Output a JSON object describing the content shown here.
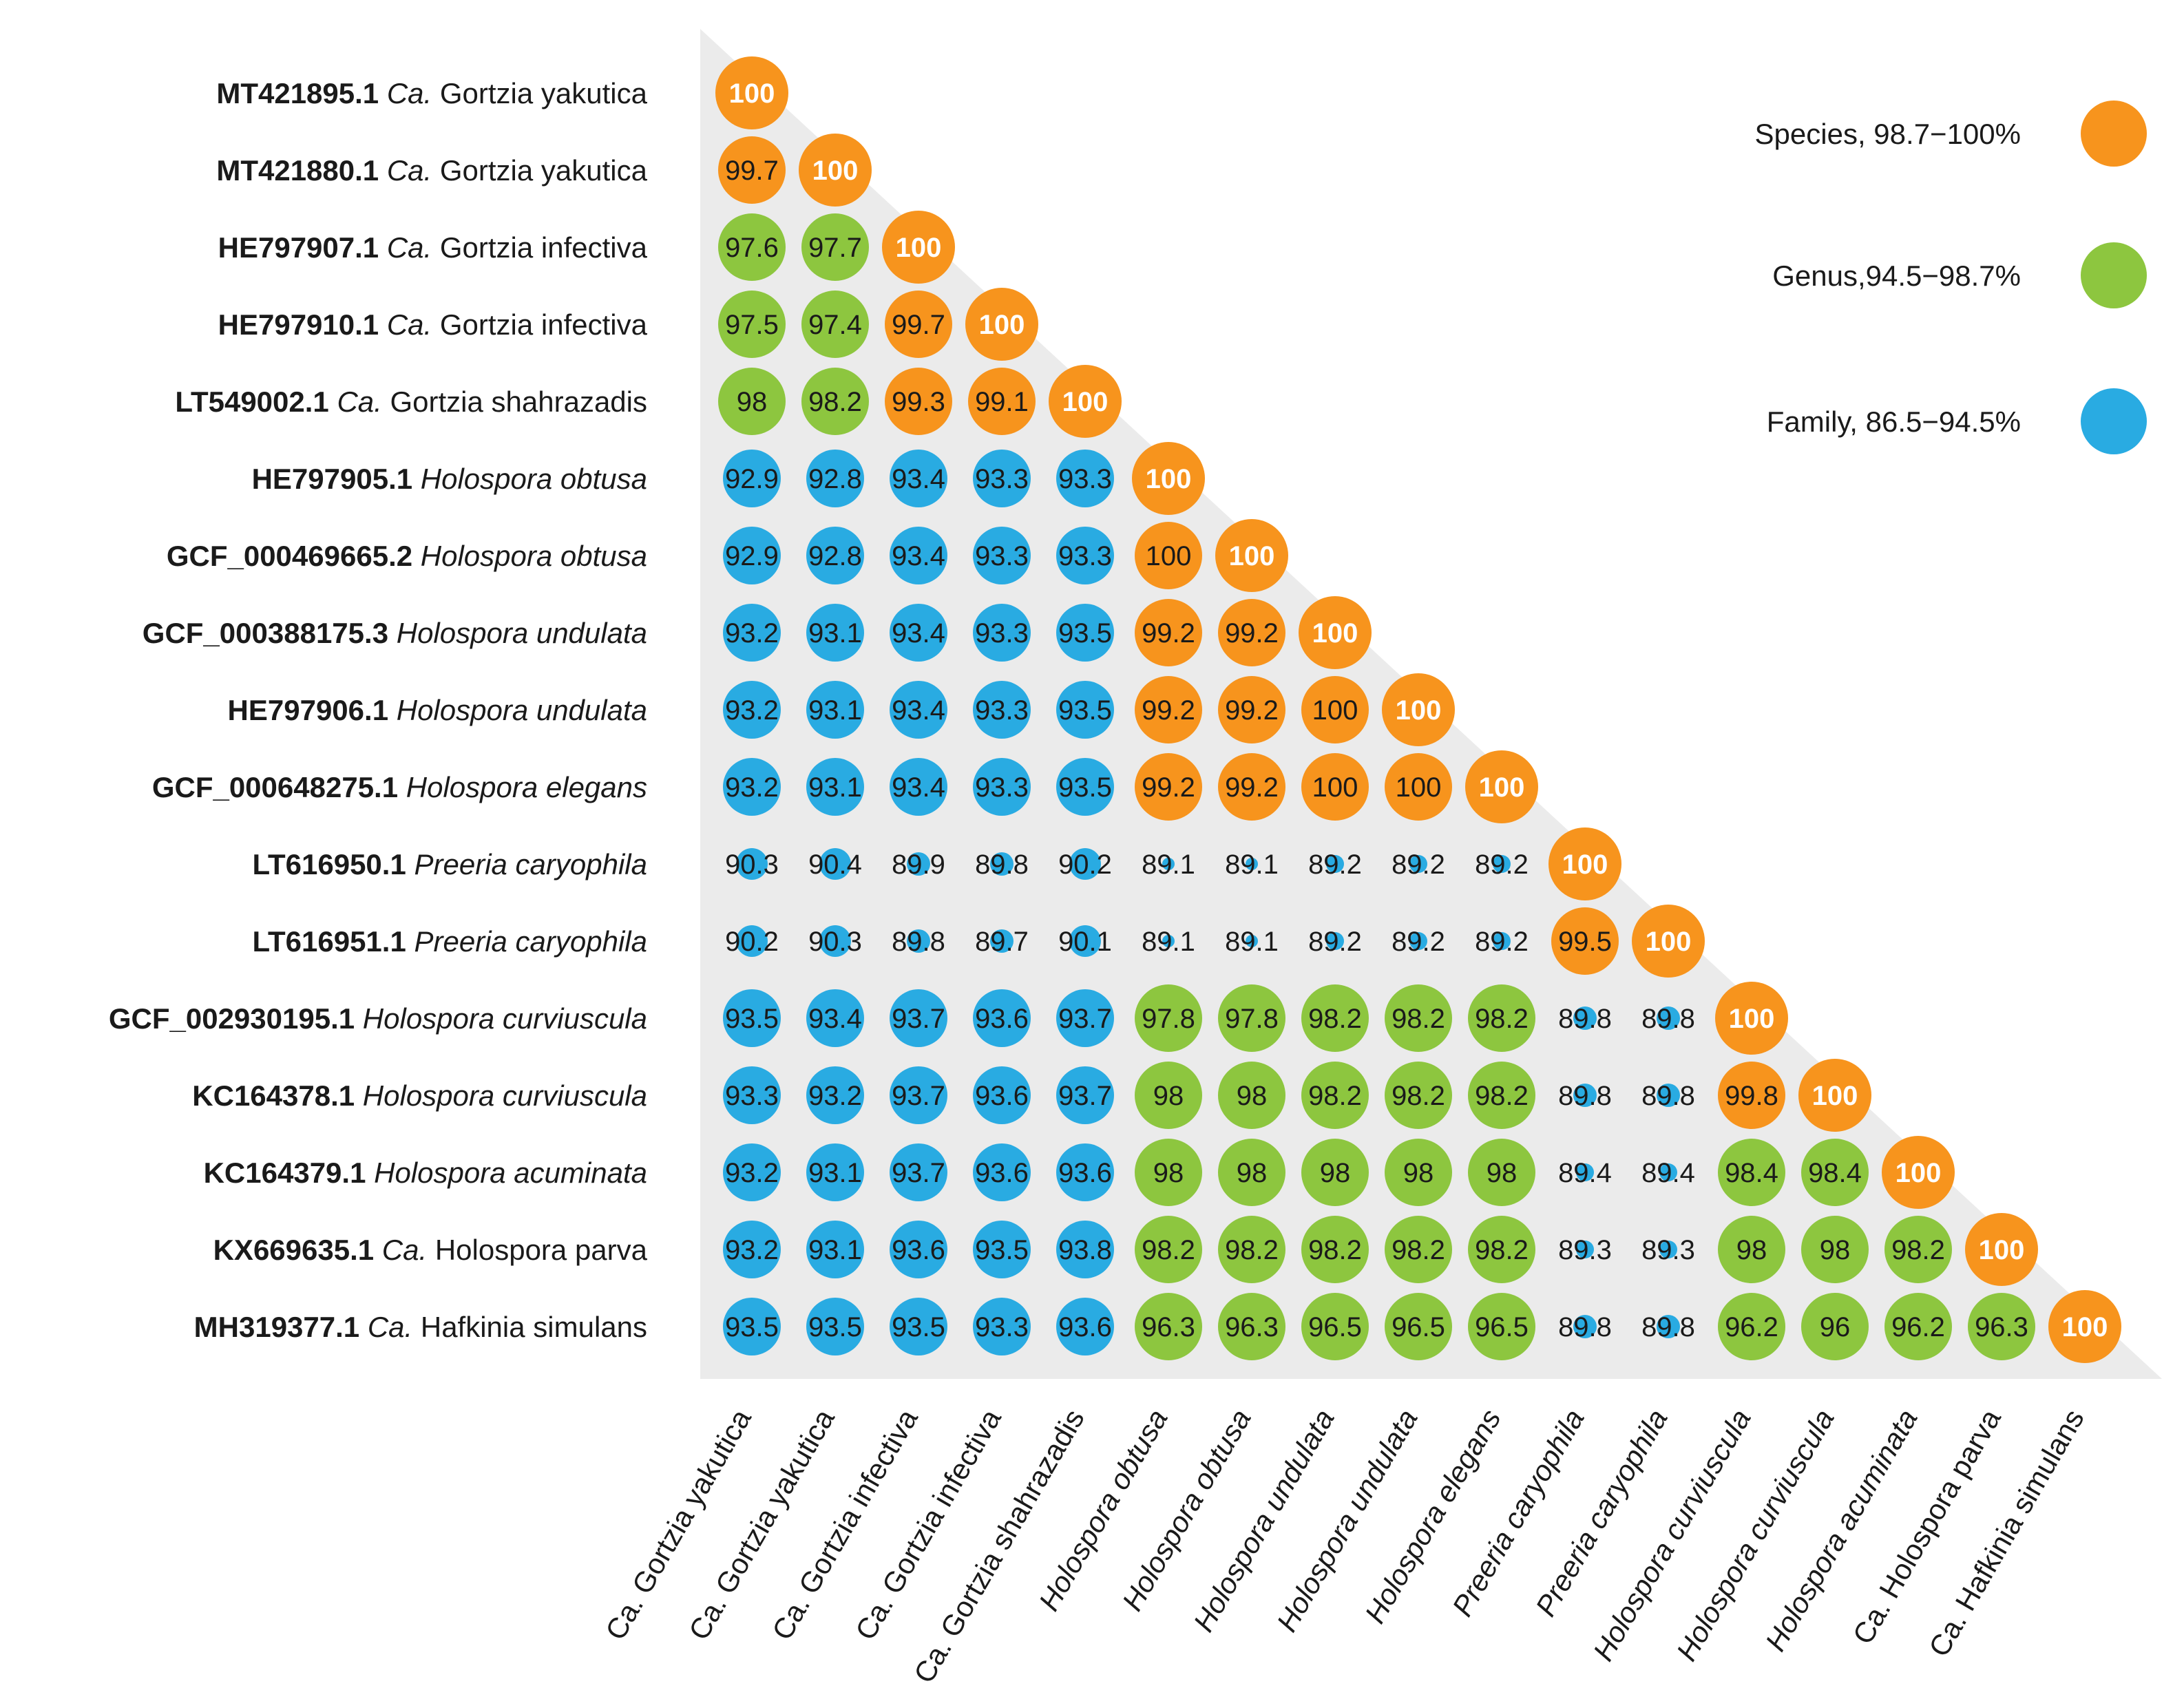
{
  "chart_data": {
    "type": "heatmap",
    "title": "",
    "rows": [
      {
        "accession": "MT421895.1",
        "prefix": "Ca.",
        "name": "Gortzia yakutica",
        "italic": false
      },
      {
        "accession": "MT421880.1",
        "prefix": "Ca.",
        "name": "Gortzia yakutica",
        "italic": false
      },
      {
        "accession": "HE797907.1",
        "prefix": "Ca.",
        "name": "Gortzia infectiva",
        "italic": false
      },
      {
        "accession": "HE797910.1",
        "prefix": "Ca.",
        "name": "Gortzia infectiva",
        "italic": false
      },
      {
        "accession": "LT549002.1",
        "prefix": "Ca.",
        "name": "Gortzia shahrazadis",
        "italic": false
      },
      {
        "accession": "HE797905.1",
        "prefix": "",
        "name": "Holospora obtusa",
        "italic": true
      },
      {
        "accession": "GCF_000469665.2",
        "prefix": "",
        "name": "Holospora obtusa",
        "italic": true
      },
      {
        "accession": "GCF_000388175.3",
        "prefix": "",
        "name": "Holospora undulata",
        "italic": true
      },
      {
        "accession": "HE797906.1",
        "prefix": "",
        "name": "Holospora undulata",
        "italic": true
      },
      {
        "accession": "GCF_000648275.1",
        "prefix": "",
        "name": "Holospora elegans",
        "italic": true
      },
      {
        "accession": "LT616950.1",
        "prefix": "",
        "name": "Preeria caryophila",
        "italic": true
      },
      {
        "accession": "LT616951.1",
        "prefix": "",
        "name": "Preeria caryophila",
        "italic": true
      },
      {
        "accession": "GCF_002930195.1",
        "prefix": "",
        "name": "Holospora curviuscula",
        "italic": true
      },
      {
        "accession": "KC164378.1",
        "prefix": "",
        "name": "Holospora curviuscula",
        "italic": true
      },
      {
        "accession": "KC164379.1",
        "prefix": "",
        "name": "Holospora acuminata",
        "italic": true
      },
      {
        "accession": "KX669635.1",
        "prefix": "Ca.",
        "name": "Holospora parva",
        "italic": false
      },
      {
        "accession": "MH319377.1",
        "prefix": "Ca.",
        "name": "Hafkinia simulans",
        "italic": false
      }
    ],
    "columns": [
      {
        "prefix": "Ca.",
        "name": "Gortzia yakutica",
        "italic": false
      },
      {
        "prefix": "Ca.",
        "name": "Gortzia yakutica",
        "italic": false
      },
      {
        "prefix": "Ca.",
        "name": "Gortzia infectiva",
        "italic": false
      },
      {
        "prefix": "Ca.",
        "name": "Gortzia infectiva",
        "italic": false
      },
      {
        "prefix": "Ca.",
        "name": "Gortzia shahrazadis",
        "italic": false
      },
      {
        "prefix": "",
        "name": "Holospora obtusa",
        "italic": true
      },
      {
        "prefix": "",
        "name": "Holospora obtusa",
        "italic": true
      },
      {
        "prefix": "",
        "name": "Holospora undulata",
        "italic": true
      },
      {
        "prefix": "",
        "name": "Holospora undulata",
        "italic": true
      },
      {
        "prefix": "",
        "name": "Holospora elegans",
        "italic": true
      },
      {
        "prefix": "",
        "name": "Preeria caryophila",
        "italic": true
      },
      {
        "prefix": "",
        "name": "Preeria caryophila",
        "italic": true
      },
      {
        "prefix": "",
        "name": "Holospora curviuscula",
        "italic": true
      },
      {
        "prefix": "",
        "name": "Holospora curviuscula",
        "italic": true
      },
      {
        "prefix": "",
        "name": "Holospora acuminata",
        "italic": true
      },
      {
        "prefix": "Ca.",
        "name": "Holospora parva",
        "italic": false
      },
      {
        "prefix": "Ca.",
        "name": "Hafkinia simulans",
        "italic": false
      }
    ],
    "values": [
      [
        "100"
      ],
      [
        "99.7",
        "100"
      ],
      [
        "97.6",
        "97.7",
        "100"
      ],
      [
        "97.5",
        "97.4",
        "99.7",
        "100"
      ],
      [
        "98",
        "98.2",
        "99.3",
        "99.1",
        "100"
      ],
      [
        "92.9",
        "92.8",
        "93.4",
        "93.3",
        "93.3",
        "100"
      ],
      [
        "92.9",
        "92.8",
        "93.4",
        "93.3",
        "93.3",
        "100",
        "100"
      ],
      [
        "93.2",
        "93.1",
        "93.4",
        "93.3",
        "93.5",
        "99.2",
        "99.2",
        "100"
      ],
      [
        "93.2",
        "93.1",
        "93.4",
        "93.3",
        "93.5",
        "99.2",
        "99.2",
        "100",
        "100"
      ],
      [
        "93.2",
        "93.1",
        "93.4",
        "93.3",
        "93.5",
        "99.2",
        "99.2",
        "100",
        "100",
        "100"
      ],
      [
        "90.3",
        "90.4",
        "89.9",
        "89.8",
        "90.2",
        "89.1",
        "89.1",
        "89.2",
        "89.2",
        "89.2",
        "100"
      ],
      [
        "90.2",
        "90.3",
        "89.8",
        "89.7",
        "90.1",
        "89.1",
        "89.1",
        "89.2",
        "89.2",
        "89.2",
        "99.5",
        "100"
      ],
      [
        "93.5",
        "93.4",
        "93.7",
        "93.6",
        "93.7",
        "97.8",
        "97.8",
        "98.2",
        "98.2",
        "98.2",
        "89.8",
        "89.8",
        "100"
      ],
      [
        "93.3",
        "93.2",
        "93.7",
        "93.6",
        "93.7",
        "98",
        "98",
        "98.2",
        "98.2",
        "98.2",
        "89.8",
        "89.8",
        "99.8",
        "100"
      ],
      [
        "93.2",
        "93.1",
        "93.7",
        "93.6",
        "93.6",
        "98",
        "98",
        "98",
        "98",
        "98",
        "89.4",
        "89.4",
        "98.4",
        "98.4",
        "100"
      ],
      [
        "93.2",
        "93.1",
        "93.6",
        "93.5",
        "93.8",
        "98.2",
        "98.2",
        "98.2",
        "98.2",
        "98.2",
        "89.3",
        "89.3",
        "98",
        "98",
        "98.2",
        "100"
      ],
      [
        "93.5",
        "93.5",
        "93.5",
        "93.3",
        "93.6",
        "96.3",
        "96.3",
        "96.5",
        "96.5",
        "96.5",
        "89.8",
        "89.8",
        "96.2",
        "96",
        "96.2",
        "96.3",
        "100"
      ]
    ],
    "value_range": [
      86.5,
      100
    ],
    "categories": [
      {
        "label": "Species, 98.7−100%",
        "min": 98.7,
        "max": 100,
        "color": "#F7941D"
      },
      {
        "label": "Genus,94.5−98.7%",
        "min": 94.5,
        "max": 98.7,
        "color": "#8DC63F"
      },
      {
        "label": "Family, 86.5−94.5%",
        "min": 86.5,
        "max": 94.5,
        "color": "#29ABE2"
      }
    ],
    "background_color": "#EBEBEB",
    "xlabel": "",
    "ylabel": ""
  }
}
